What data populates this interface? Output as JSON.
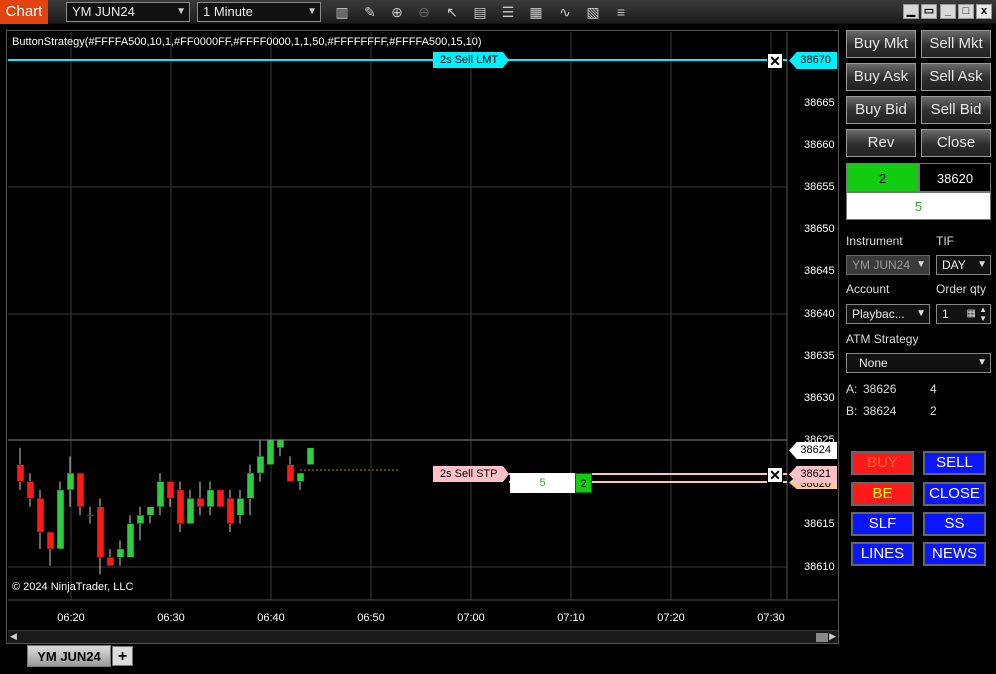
{
  "app": {
    "title": "Chart"
  },
  "toolbar": {
    "instrument": "YM JUN24",
    "interval": "1 Minute",
    "icons": [
      "bar-type-icon",
      "draw-pencil-icon",
      "zoom-in-icon",
      "zoom-out-icon",
      "pointer-icon",
      "data-box-icon",
      "properties-icon",
      "indicators-icon",
      "strategies-icon",
      "chart-trader-icon",
      "menu-icon"
    ]
  },
  "window_controls": {
    "min": "",
    "restore": "",
    "max": "",
    "close": "x"
  },
  "chart": {
    "indicator_label": "ButtonStrategy(#FFFFA500,10,1,#FF0000FF,#FFFF0000,1,1,50,#FFFFFFFF,#FFFFA500,15,10)",
    "copyright": "© 2024 NinjaTrader, LLC",
    "price_ticks": [
      "38665",
      "38660",
      "38655",
      "38650",
      "38645",
      "38640",
      "38635",
      "38630",
      "38625",
      "38615",
      "38610"
    ],
    "time_ticks": [
      "06:20",
      "06:30",
      "06:40",
      "06:50",
      "07:00",
      "07:10",
      "07:20",
      "07:30"
    ],
    "orders": {
      "sell_lmt": {
        "label": "2s  Sell LMT",
        "price": "38670"
      },
      "sell_stp": {
        "label": "2s  Sell STP",
        "price": "38621",
        "qty": "5",
        "filled": "2"
      }
    },
    "price_markers": {
      "last": "38624",
      "stop": "38621",
      "position": "38620"
    },
    "colors": {
      "lmt": "#00f0ff",
      "stp": "#ffc0c8",
      "up": "#2ecc40",
      "down": "#ff1a1a"
    }
  },
  "chart_data": {
    "type": "candlestick",
    "instrument": "YM JUN24",
    "interval": "1 Minute",
    "x_start": "06:15",
    "x_end": "07:33",
    "ylim": [
      38607,
      38673
    ],
    "candles": [
      {
        "t": "06:15",
        "o": 38622,
        "h": 38624,
        "l": 38619,
        "c": 38620
      },
      {
        "t": "06:16",
        "o": 38620,
        "h": 38621,
        "l": 38617,
        "c": 38618
      },
      {
        "t": "06:17",
        "o": 38618,
        "h": 38619,
        "l": 38612,
        "c": 38614
      },
      {
        "t": "06:18",
        "o": 38614,
        "h": 38614,
        "l": 38610,
        "c": 38612
      },
      {
        "t": "06:19",
        "o": 38612,
        "h": 38620,
        "l": 38612,
        "c": 38619
      },
      {
        "t": "06:20",
        "o": 38619,
        "h": 38623,
        "l": 38617,
        "c": 38621
      },
      {
        "t": "06:21",
        "o": 38621,
        "h": 38621,
        "l": 38616,
        "c": 38617
      },
      {
        "t": "06:22",
        "o": 38616,
        "h": 38617,
        "l": 38615,
        "c": 38616
      },
      {
        "t": "06:23",
        "o": 38617,
        "h": 38618,
        "l": 38609,
        "c": 38611
      },
      {
        "t": "06:24",
        "o": 38611,
        "h": 38612,
        "l": 38610,
        "c": 38610
      },
      {
        "t": "06:25",
        "o": 38611,
        "h": 38613,
        "l": 38610,
        "c": 38612
      },
      {
        "t": "06:26",
        "o": 38611,
        "h": 38616,
        "l": 38611,
        "c": 38615
      },
      {
        "t": "06:27",
        "o": 38615,
        "h": 38617,
        "l": 38613,
        "c": 38616
      },
      {
        "t": "06:28",
        "o": 38616,
        "h": 38617,
        "l": 38615,
        "c": 38617
      },
      {
        "t": "06:29",
        "o": 38617,
        "h": 38621,
        "l": 38616,
        "c": 38620
      },
      {
        "t": "06:30",
        "o": 38620,
        "h": 38620,
        "l": 38617,
        "c": 38618
      },
      {
        "t": "06:31",
        "o": 38619,
        "h": 38620,
        "l": 38614,
        "c": 38615
      },
      {
        "t": "06:32",
        "o": 38615,
        "h": 38619,
        "l": 38615,
        "c": 38618
      },
      {
        "t": "06:33",
        "o": 38618,
        "h": 38620,
        "l": 38616,
        "c": 38617
      },
      {
        "t": "06:34",
        "o": 38617,
        "h": 38620,
        "l": 38616,
        "c": 38619
      },
      {
        "t": "06:35",
        "o": 38619,
        "h": 38619,
        "l": 38617,
        "c": 38617
      },
      {
        "t": "06:36",
        "o": 38618,
        "h": 38619,
        "l": 38614,
        "c": 38615
      },
      {
        "t": "06:37",
        "o": 38616,
        "h": 38619,
        "l": 38615,
        "c": 38618
      },
      {
        "t": "06:38",
        "o": 38618,
        "h": 38622,
        "l": 38616,
        "c": 38621
      },
      {
        "t": "06:39",
        "o": 38621,
        "h": 38625,
        "l": 38620,
        "c": 38623
      },
      {
        "t": "06:40",
        "o": 38622,
        "h": 38625,
        "l": 38622,
        "c": 38625
      },
      {
        "t": "06:41",
        "o": 38624,
        "h": 38625,
        "l": 38623,
        "c": 38625
      },
      {
        "t": "06:42",
        "o": 38622,
        "h": 38623,
        "l": 38620,
        "c": 38620
      },
      {
        "t": "06:43",
        "o": 38620,
        "h": 38621,
        "l": 38619,
        "c": 38621
      },
      {
        "t": "06:44",
        "o": 38622,
        "h": 38624,
        "l": 38622,
        "c": 38624
      }
    ]
  },
  "right_panel": {
    "buttons": {
      "buy_mkt": "Buy Mkt",
      "sell_mkt": "Sell Mkt",
      "buy_ask": "Buy Ask",
      "sell_ask": "Sell Ask",
      "buy_bid": "Buy Bid",
      "sell_bid": "Sell Bid",
      "rev": "Rev",
      "close": "Close"
    },
    "position": {
      "qty": "2",
      "avg_price": "38620",
      "pnl": "5"
    },
    "instrument_label": "Instrument",
    "instrument_value": "YM JUN24",
    "tif_label": "TIF",
    "tif_value": "DAY",
    "account_label": "Account",
    "account_value": "Playbac...",
    "qty_label": "Order qty",
    "qty_value": "1",
    "atm_label": "ATM Strategy",
    "atm_value": "None",
    "ask_label": "A:",
    "ask_price": "38626",
    "ask_size": "4",
    "bid_label": "B:",
    "bid_price": "38624",
    "bid_size": "2",
    "strategy_buttons": {
      "buy": "BUY",
      "sell": "SELL",
      "be": "BE",
      "close": "CLOSE",
      "slf": "SLF",
      "ss": "SS",
      "lines": "LINES",
      "news": "NEWS"
    }
  },
  "tabs": {
    "active": "YM JUN24",
    "add": "+"
  }
}
